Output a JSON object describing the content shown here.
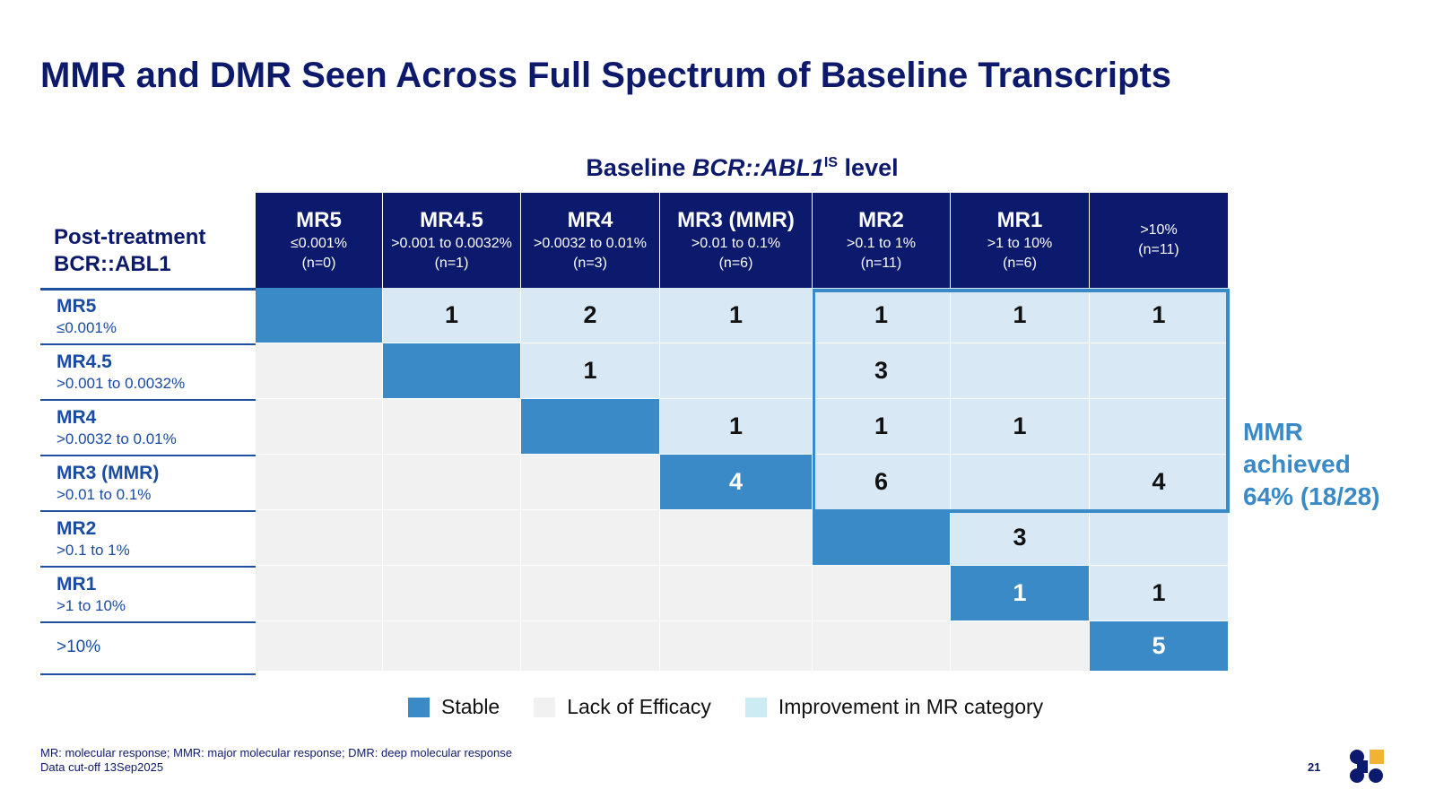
{
  "title": "MMR and DMR Seen Across Full Spectrum of Baseline Transcripts",
  "baseline_label": {
    "prefix": "Baseline ",
    "gene": "BCR::ABL1",
    "sup": "IS",
    "suffix": " level"
  },
  "post_label": {
    "line1": "Post-treatment",
    "line2": "BCR::ABL1"
  },
  "columns": [
    {
      "name": "MR5",
      "range": "≤0.001%",
      "n": "(n=0)"
    },
    {
      "name": "MR4.5",
      "range": ">0.001 to 0.0032%",
      "n": "(n=1)"
    },
    {
      "name": "MR4",
      "range": ">0.0032 to 0.01%",
      "n": "(n=3)"
    },
    {
      "name": "MR3 (MMR)",
      "range": ">0.01 to 0.1%",
      "n": "(n=6)"
    },
    {
      "name": "MR2",
      "range": ">0.1 to 1%",
      "n": "(n=11)"
    },
    {
      "name": "MR1",
      "range": ">1 to 10%",
      "n": "(n=6)"
    },
    {
      "name": "",
      "range": ">10%",
      "n": "(n=11)"
    }
  ],
  "rows": [
    {
      "name": "MR5",
      "range": "≤0.001%"
    },
    {
      "name": "MR4.5",
      "range": ">0.001 to 0.0032%"
    },
    {
      "name": "MR4",
      "range": ">0.0032 to 0.01%"
    },
    {
      "name": "MR3 (MMR)",
      "range": ">0.01 to 0.1%"
    },
    {
      "name": "MR2",
      "range": ">0.1 to 1%"
    },
    {
      "name": "MR1",
      "range": ">1 to 10%"
    },
    {
      "name": ">10%",
      "range": ""
    }
  ],
  "matrix": [
    [
      "",
      "1",
      "2",
      "1",
      "1",
      "1",
      "1"
    ],
    [
      "",
      "",
      "1",
      "",
      "3",
      "",
      ""
    ],
    [
      "",
      "",
      "",
      "1",
      "1",
      "1",
      ""
    ],
    [
      "",
      "",
      "",
      "4",
      "6",
      "",
      "4"
    ],
    [
      "",
      "",
      "",
      "",
      "",
      "3",
      ""
    ],
    [
      "",
      "",
      "",
      "",
      "",
      "1",
      "1"
    ],
    [
      "",
      "",
      "",
      "",
      "",
      "",
      "5"
    ]
  ],
  "mmr_callout": {
    "line1": "MMR",
    "line2": "achieved",
    "line3": "64% (18/28)"
  },
  "legend": [
    {
      "label": "Stable",
      "color": "#3b8ac8"
    },
    {
      "label": "Lack of Efficacy",
      "color": "#f1f1f1"
    },
    {
      "label": "Improvement in MR category",
      "color": "#cdebf2"
    }
  ],
  "footnote": {
    "line1": "MR: molecular response; MMR: major molecular response; DMR: deep molecular response",
    "line2": "Data cut-off 13Sep2025"
  },
  "page_number": "21",
  "colors": {
    "navy": "#0c1a6e",
    "stable": "#3b8ac8",
    "lack": "#f1f1f1",
    "improve": "#d9e8f5",
    "accent": "#3b8ac8"
  },
  "logo": {
    "icon": "company-logo-icon",
    "colors": [
      "#0c1a6e",
      "#f2b233"
    ]
  }
}
